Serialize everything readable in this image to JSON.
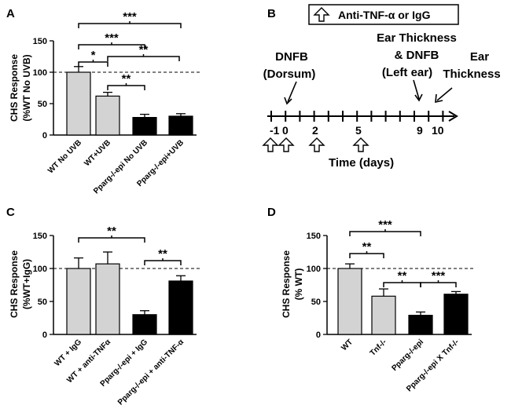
{
  "panels": {
    "a": {
      "letter": "A"
    },
    "b": {
      "letter": "B"
    },
    "c": {
      "letter": "C"
    },
    "d": {
      "letter": "D"
    }
  },
  "chart_data": [
    {
      "id": "A",
      "type": "bar",
      "ylabel": "CHS Response (%WT No UVB)",
      "ylabel_lines": [
        "CHS Response",
        "(%WT No UVB)"
      ],
      "ylim": [
        0,
        150
      ],
      "yticks": [
        "0",
        "50",
        "100",
        "150"
      ],
      "reference_line": 100,
      "categories": [
        "WT No UVB",
        "WT+UVB",
        "Pparg-/-epi No UVB",
        "Pparg-/-epi+UVB"
      ],
      "values": [
        100,
        62,
        28,
        30
      ],
      "errors": [
        9,
        6,
        5,
        4
      ],
      "bar_colors": [
        "#d3d3d3",
        "#d3d3d3",
        "#000000",
        "#000000"
      ],
      "significance": [
        {
          "from": 0,
          "to": 3,
          "label": "***"
        },
        {
          "from": 0,
          "to": 2,
          "label": "***"
        },
        {
          "from": 0,
          "to": 1,
          "label": "*"
        },
        {
          "from": 1,
          "to": 3,
          "label": "**"
        },
        {
          "from": 1,
          "to": 2,
          "label": "**"
        }
      ]
    },
    {
      "id": "C",
      "type": "bar",
      "ylabel": "CHS Response (%WT+IgG)",
      "ylabel_lines": [
        "CHS Response",
        "(%WT+IgG)"
      ],
      "ylim": [
        0,
        150
      ],
      "yticks": [
        "0",
        "50",
        "100",
        "150"
      ],
      "reference_line": 100,
      "categories": [
        "WT + IgG",
        "WT + anti-TNFα",
        "Pparg-/-epi + IgG",
        "Pparg-/-epi + anti-TNF-α"
      ],
      "values": [
        100,
        107,
        30,
        81
      ],
      "errors": [
        16,
        18,
        6,
        8
      ],
      "bar_colors": [
        "#d3d3d3",
        "#d3d3d3",
        "#000000",
        "#000000"
      ],
      "significance": [
        {
          "from": 0,
          "to": 2,
          "label": "**"
        },
        {
          "from": 2,
          "to": 3,
          "label": "**"
        }
      ]
    },
    {
      "id": "D",
      "type": "bar",
      "ylabel": "CHS Response (% WT)",
      "ylabel_lines": [
        "CHS Response",
        "(% WT)"
      ],
      "ylim": [
        0,
        150
      ],
      "yticks": [
        "0",
        "50",
        "100",
        "150"
      ],
      "reference_line": 100,
      "categories": [
        "WT",
        "Tnf-/-",
        "Pparg-/-epi",
        "Pparg-/-epi X Tnf-/-"
      ],
      "values": [
        100,
        58,
        29,
        61
      ],
      "errors": [
        7,
        11,
        5,
        4
      ],
      "bar_colors": [
        "#d3d3d3",
        "#d3d3d3",
        "#000000",
        "#000000"
      ],
      "significance": [
        {
          "from": 0,
          "to": 2,
          "label": "***"
        },
        {
          "from": 0,
          "to": 1,
          "label": "**"
        },
        {
          "from": 1,
          "to": 2,
          "label": "**"
        },
        {
          "from": 2,
          "to": 3,
          "label": "***"
        }
      ]
    }
  ],
  "timeline": {
    "legend": "Anti-TNF-α or IgG",
    "xlabel": "Time (days)",
    "ticks": [
      "-1",
      "0",
      "2",
      "5",
      "9",
      "10"
    ],
    "treatment_days": [
      "-1",
      "0",
      "2",
      "5"
    ],
    "events": [
      {
        "day": "0",
        "lines": [
          "DNFB",
          "(Dorsum)"
        ]
      },
      {
        "day": "9",
        "lines": [
          "Ear Thickness",
          "& DNFB",
          "(Left ear)"
        ]
      },
      {
        "day": "10",
        "lines": [
          "Ear",
          "Thickness"
        ]
      }
    ]
  }
}
